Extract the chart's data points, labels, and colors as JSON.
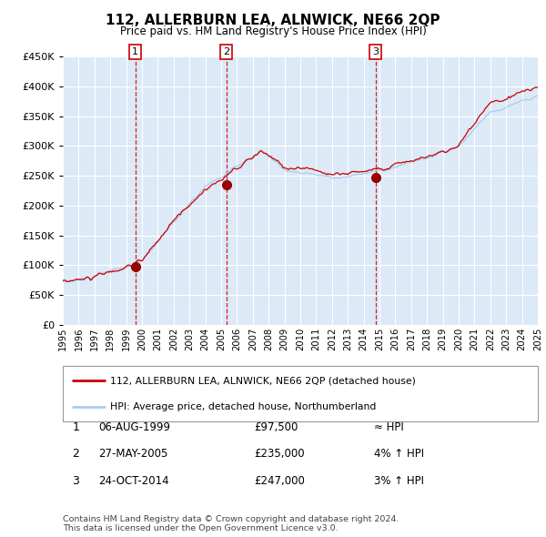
{
  "title": "112, ALLERBURN LEA, ALNWICK, NE66 2QP",
  "subtitle": "Price paid vs. HM Land Registry's House Price Index (HPI)",
  "legend_line1": "112, ALLERBURN LEA, ALNWICK, NE66 2QP (detached house)",
  "legend_line2": "HPI: Average price, detached house, Northumberland",
  "table_rows": [
    {
      "num": "1",
      "date": "06-AUG-1999",
      "price": "£97,500",
      "rel": "≈ HPI"
    },
    {
      "num": "2",
      "date": "27-MAY-2005",
      "price": "£235,000",
      "rel": "4% ↑ HPI"
    },
    {
      "num": "3",
      "date": "24-OCT-2014",
      "price": "£247,000",
      "rel": "3% ↑ HPI"
    }
  ],
  "footer": "Contains HM Land Registry data © Crown copyright and database right 2024.\nThis data is licensed under the Open Government Licence v3.0.",
  "ylim": [
    0,
    450000
  ],
  "yticks": [
    0,
    50000,
    100000,
    150000,
    200000,
    250000,
    300000,
    350000,
    400000,
    450000
  ],
  "year_start": 1995,
  "year_end": 2025,
  "plot_bg": "#dce9f7",
  "red_line_color": "#cc0000",
  "blue_line_color": "#aaccee",
  "vline_color": "#cc0000",
  "sale_dot_color": "#990000",
  "grid_color": "#ffffff",
  "box_edge_color": "#cc0000",
  "sale_years": [
    1999.583,
    2005.333,
    2014.75
  ],
  "sale_prices": [
    97500,
    235000,
    247000
  ],
  "sale_labels": [
    "1",
    "2",
    "3"
  ]
}
